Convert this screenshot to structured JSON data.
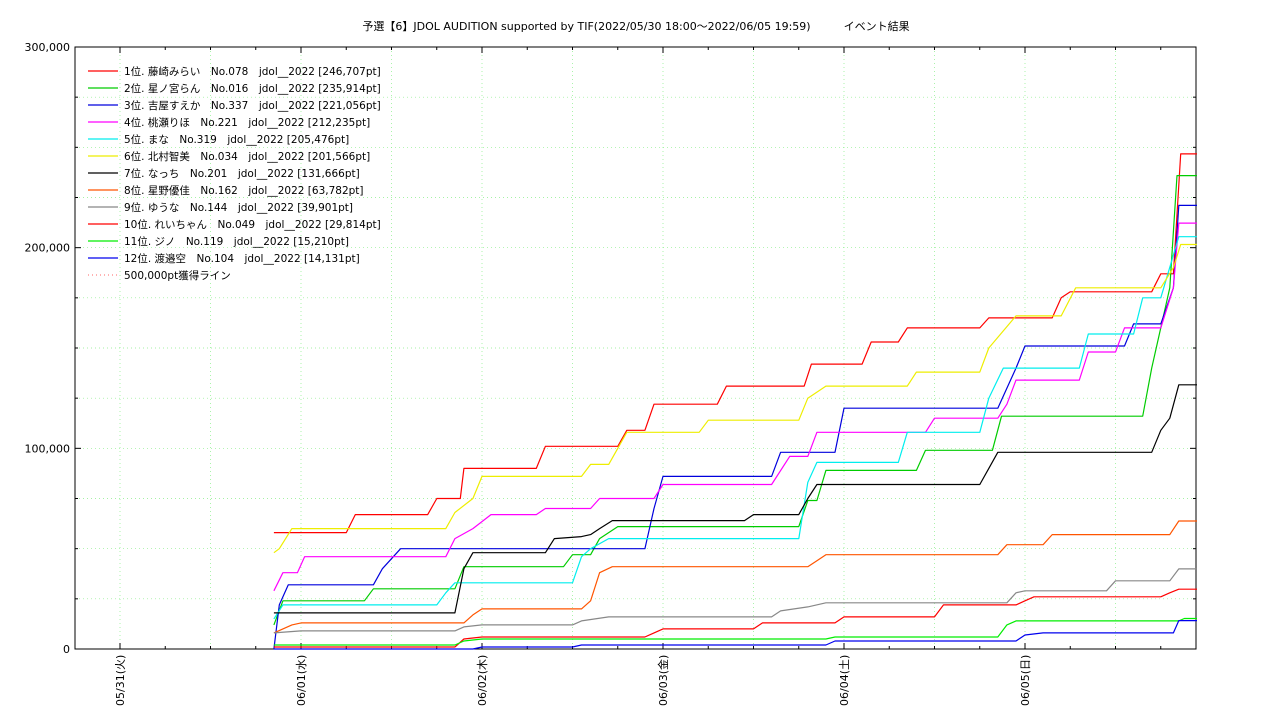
{
  "chart_data": {
    "type": "line",
    "title": "予選【6】JDOL AUDITION supported by TIF(2022/05/30 18:00～2022/06/05 19:59)　　　イベント結果",
    "x_tick_labels": [
      "05/31(火)",
      "06/01(水)",
      "06/02(木)",
      "06/03(金)",
      "06/04(土)",
      "06/05(日)"
    ],
    "x_range_days": [
      -0.5,
      6.0
    ],
    "ylim": [
      0,
      300000
    ],
    "y_ticks": [
      0,
      100000,
      200000,
      300000
    ],
    "y_tick_labels": [
      "0",
      "100,000",
      "200,000",
      "300,000"
    ],
    "grid": true,
    "legend_position": "top-left",
    "reference_line": {
      "name": "500,000pt獲得ライン",
      "value": 500000,
      "color": "#ff6666"
    },
    "series": [
      {
        "name": "1位. 藤崎みらい　No.078　jdol__2022 [246,707pt]",
        "color": "#ff0000",
        "points": [
          [
            0.85,
            58000
          ],
          [
            1.25,
            58000
          ],
          [
            1.3,
            67000
          ],
          [
            1.7,
            67000
          ],
          [
            1.75,
            75000
          ],
          [
            1.88,
            75000
          ],
          [
            1.9,
            90000
          ],
          [
            2.3,
            90000
          ],
          [
            2.35,
            101000
          ],
          [
            2.75,
            101000
          ],
          [
            2.8,
            109000
          ],
          [
            2.9,
            109000
          ],
          [
            2.95,
            122000
          ],
          [
            3.3,
            122000
          ],
          [
            3.35,
            131000
          ],
          [
            3.78,
            131000
          ],
          [
            3.82,
            142000
          ],
          [
            4.1,
            142000
          ],
          [
            4.15,
            153000
          ],
          [
            4.3,
            153000
          ],
          [
            4.35,
            160000
          ],
          [
            4.75,
            160000
          ],
          [
            4.8,
            165000
          ],
          [
            5.15,
            165000
          ],
          [
            5.2,
            175000
          ],
          [
            5.25,
            178000
          ],
          [
            5.7,
            178000
          ],
          [
            5.75,
            187000
          ],
          [
            5.82,
            187000
          ],
          [
            5.86,
            246707
          ],
          [
            5.95,
            246707
          ]
        ]
      },
      {
        "name": "2位. 星ノ宮らん　No.016　jdol__2022 [235,914pt]",
        "color": "#00cc00",
        "points": [
          [
            0.85,
            12000
          ],
          [
            0.9,
            24000
          ],
          [
            1.35,
            24000
          ],
          [
            1.4,
            30000
          ],
          [
            1.85,
            30000
          ],
          [
            1.9,
            41000
          ],
          [
            2.45,
            41000
          ],
          [
            2.5,
            47000
          ],
          [
            2.6,
            47000
          ],
          [
            2.65,
            55000
          ],
          [
            2.75,
            61000
          ],
          [
            3.25,
            61000
          ],
          [
            3.35,
            61000
          ],
          [
            3.45,
            61000
          ],
          [
            3.5,
            61000
          ],
          [
            3.75,
            61000
          ],
          [
            3.8,
            74000
          ],
          [
            3.85,
            74000
          ],
          [
            3.9,
            89000
          ],
          [
            4.4,
            89000
          ],
          [
            4.45,
            99000
          ],
          [
            4.82,
            99000
          ],
          [
            4.87,
            116000
          ],
          [
            5.5,
            116000
          ],
          [
            5.6,
            116000
          ],
          [
            5.65,
            116000
          ],
          [
            5.7,
            140000
          ],
          [
            5.8,
            180000
          ],
          [
            5.84,
            235914
          ],
          [
            5.95,
            235914
          ]
        ]
      },
      {
        "name": "3位. 吉屋すえか　No.337　jdol__2022 [221,056pt]",
        "color": "#0000dd",
        "points": [
          [
            0.85,
            0
          ],
          [
            0.88,
            22000
          ],
          [
            0.93,
            32000
          ],
          [
            1.4,
            32000
          ],
          [
            1.45,
            40000
          ],
          [
            1.55,
            50000
          ],
          [
            2.9,
            50000
          ],
          [
            2.95,
            70000
          ],
          [
            3.0,
            86000
          ],
          [
            3.6,
            86000
          ],
          [
            3.65,
            98000
          ],
          [
            3.95,
            98000
          ],
          [
            4.0,
            120000
          ],
          [
            4.85,
            120000
          ],
          [
            4.95,
            140000
          ],
          [
            5.0,
            151000
          ],
          [
            5.55,
            151000
          ],
          [
            5.6,
            162000
          ],
          [
            5.75,
            162000
          ],
          [
            5.82,
            180000
          ],
          [
            5.85,
            221056
          ],
          [
            5.95,
            221056
          ]
        ]
      },
      {
        "name": "4位. 桃瀬りほ　No.221　jdol__2022 [212,235pt]",
        "color": "#ff00ff",
        "points": [
          [
            0.85,
            29000
          ],
          [
            0.9,
            38000
          ],
          [
            0.98,
            38000
          ],
          [
            1.02,
            46000
          ],
          [
            1.8,
            46000
          ],
          [
            1.85,
            55000
          ],
          [
            1.95,
            60000
          ],
          [
            2.05,
            67000
          ],
          [
            2.3,
            67000
          ],
          [
            2.35,
            70000
          ],
          [
            2.6,
            70000
          ],
          [
            2.65,
            75000
          ],
          [
            2.95,
            75000
          ],
          [
            3.0,
            82000
          ],
          [
            3.6,
            82000
          ],
          [
            3.7,
            96000
          ],
          [
            3.8,
            96000
          ],
          [
            3.85,
            108000
          ],
          [
            4.45,
            108000
          ],
          [
            4.5,
            115000
          ],
          [
            4.85,
            115000
          ],
          [
            4.9,
            122000
          ],
          [
            4.95,
            134000
          ],
          [
            5.3,
            134000
          ],
          [
            5.35,
            148000
          ],
          [
            5.5,
            148000
          ],
          [
            5.55,
            160000
          ],
          [
            5.75,
            160000
          ],
          [
            5.82,
            180000
          ],
          [
            5.85,
            212235
          ],
          [
            5.95,
            212235
          ]
        ]
      },
      {
        "name": "5位. まな　No.319　jdol__2022 [205,476pt]",
        "color": "#00eeee",
        "points": [
          [
            0.85,
            15000
          ],
          [
            0.9,
            22000
          ],
          [
            1.75,
            22000
          ],
          [
            1.8,
            28000
          ],
          [
            1.85,
            33000
          ],
          [
            2.5,
            33000
          ],
          [
            2.55,
            46000
          ],
          [
            2.6,
            50000
          ],
          [
            2.7,
            55000
          ],
          [
            3.75,
            55000
          ],
          [
            3.8,
            83000
          ],
          [
            3.85,
            93000
          ],
          [
            4.3,
            93000
          ],
          [
            4.35,
            108000
          ],
          [
            4.75,
            108000
          ],
          [
            4.8,
            125000
          ],
          [
            4.88,
            140000
          ],
          [
            5.3,
            140000
          ],
          [
            5.35,
            157000
          ],
          [
            5.6,
            157000
          ],
          [
            5.65,
            175000
          ],
          [
            5.75,
            175000
          ],
          [
            5.85,
            205476
          ],
          [
            5.95,
            205476
          ]
        ]
      },
      {
        "name": "6位. 北村智美　No.034　jdol__2022 [201,566pt]",
        "color": "#eeee00",
        "points": [
          [
            0.85,
            48000
          ],
          [
            0.88,
            50000
          ],
          [
            0.95,
            60000
          ],
          [
            1.8,
            60000
          ],
          [
            1.85,
            68000
          ],
          [
            1.95,
            75000
          ],
          [
            2.0,
            86000
          ],
          [
            2.55,
            86000
          ],
          [
            2.6,
            92000
          ],
          [
            2.7,
            92000
          ],
          [
            2.75,
            100000
          ],
          [
            2.8,
            108000
          ],
          [
            3.2,
            108000
          ],
          [
            3.25,
            114000
          ],
          [
            3.75,
            114000
          ],
          [
            3.8,
            125000
          ],
          [
            3.9,
            131000
          ],
          [
            4.35,
            131000
          ],
          [
            4.4,
            138000
          ],
          [
            4.75,
            138000
          ],
          [
            4.8,
            150000
          ],
          [
            4.95,
            166000
          ],
          [
            5.2,
            166000
          ],
          [
            5.28,
            180000
          ],
          [
            5.75,
            180000
          ],
          [
            5.82,
            190000
          ],
          [
            5.86,
            201566
          ],
          [
            5.95,
            201566
          ]
        ]
      },
      {
        "name": "7位. なっち　No.201　jdol__2022 [131,666pt]",
        "color": "#000000",
        "points": [
          [
            0.85,
            18000
          ],
          [
            1.85,
            18000
          ],
          [
            1.9,
            40000
          ],
          [
            1.95,
            48000
          ],
          [
            2.35,
            48000
          ],
          [
            2.4,
            55000
          ],
          [
            2.55,
            56000
          ],
          [
            2.6,
            57000
          ],
          [
            2.65,
            60000
          ],
          [
            2.72,
            64000
          ],
          [
            3.45,
            64000
          ],
          [
            3.5,
            67000
          ],
          [
            3.75,
            67000
          ],
          [
            3.8,
            75000
          ],
          [
            3.85,
            82000
          ],
          [
            4.75,
            82000
          ],
          [
            4.8,
            90000
          ],
          [
            4.85,
            98000
          ],
          [
            5.7,
            98000
          ],
          [
            5.75,
            109000
          ],
          [
            5.8,
            115000
          ],
          [
            5.85,
            131666
          ],
          [
            5.95,
            131666
          ]
        ]
      },
      {
        "name": "8位. 星野優佳　No.162　jdol__2022 [63,782pt]",
        "color": "#ff5500",
        "points": [
          [
            0.85,
            8000
          ],
          [
            0.95,
            12000
          ],
          [
            1.0,
            13000
          ],
          [
            1.9,
            13000
          ],
          [
            1.95,
            17000
          ],
          [
            2.0,
            20000
          ],
          [
            2.55,
            20000
          ],
          [
            2.6,
            24000
          ],
          [
            2.65,
            38000
          ],
          [
            2.72,
            41000
          ],
          [
            3.8,
            41000
          ],
          [
            3.85,
            44000
          ],
          [
            3.9,
            47000
          ],
          [
            4.85,
            47000
          ],
          [
            4.9,
            52000
          ],
          [
            5.1,
            52000
          ],
          [
            5.15,
            57000
          ],
          [
            5.8,
            57000
          ],
          [
            5.85,
            63782
          ],
          [
            5.95,
            63782
          ]
        ]
      },
      {
        "name": "9位. ゆうな　No.144　jdol__2022 [39,901pt]",
        "color": "#888888",
        "points": [
          [
            0.85,
            8000
          ],
          [
            1.0,
            9000
          ],
          [
            1.85,
            9000
          ],
          [
            1.9,
            11000
          ],
          [
            2.0,
            12000
          ],
          [
            2.5,
            12000
          ],
          [
            2.55,
            14000
          ],
          [
            2.7,
            16000
          ],
          [
            3.6,
            16000
          ],
          [
            3.65,
            19000
          ],
          [
            3.8,
            21000
          ],
          [
            3.9,
            23000
          ],
          [
            4.9,
            23000
          ],
          [
            4.95,
            28000
          ],
          [
            5.0,
            29000
          ],
          [
            5.45,
            29000
          ],
          [
            5.5,
            34000
          ],
          [
            5.8,
            34000
          ],
          [
            5.85,
            39901
          ],
          [
            5.95,
            39901
          ]
        ]
      },
      {
        "name": "10位. れいちゃん　No.049　jdol__2022 [29,814pt]",
        "color": "#ff0000",
        "points": [
          [
            0.85,
            1000
          ],
          [
            1.85,
            1000
          ],
          [
            1.9,
            5000
          ],
          [
            2.0,
            6000
          ],
          [
            2.9,
            6000
          ],
          [
            2.95,
            8000
          ],
          [
            3.0,
            10000
          ],
          [
            3.5,
            10000
          ],
          [
            3.55,
            13000
          ],
          [
            3.95,
            13000
          ],
          [
            4.0,
            16000
          ],
          [
            4.5,
            16000
          ],
          [
            4.55,
            22000
          ],
          [
            4.95,
            22000
          ],
          [
            5.0,
            24000
          ],
          [
            5.05,
            26000
          ],
          [
            5.75,
            26000
          ],
          [
            5.8,
            28000
          ],
          [
            5.85,
            29814
          ],
          [
            5.95,
            29814
          ]
        ]
      },
      {
        "name": "11位. ジノ　No.119　jdol__2022 [15,210pt]",
        "color": "#00ee00",
        "points": [
          [
            0.85,
            2000
          ],
          [
            1.85,
            2000
          ],
          [
            1.9,
            4000
          ],
          [
            2.0,
            5000
          ],
          [
            3.9,
            5000
          ],
          [
            3.95,
            6000
          ],
          [
            4.85,
            6000
          ],
          [
            4.9,
            12000
          ],
          [
            4.95,
            14000
          ],
          [
            5.85,
            14000
          ],
          [
            5.88,
            15210
          ],
          [
            5.95,
            15210
          ]
        ]
      },
      {
        "name": "12位. 渡邉空　No.104　jdol__2022 [14,131pt]",
        "color": "#0000ee",
        "points": [
          [
            0.85,
            0
          ],
          [
            1.95,
            0
          ],
          [
            2.0,
            1000
          ],
          [
            2.5,
            1000
          ],
          [
            2.55,
            2000
          ],
          [
            3.9,
            2000
          ],
          [
            3.95,
            4000
          ],
          [
            4.95,
            4000
          ],
          [
            5.0,
            7000
          ],
          [
            5.1,
            8000
          ],
          [
            5.82,
            8000
          ],
          [
            5.85,
            14131
          ],
          [
            5.95,
            14131
          ]
        ]
      }
    ]
  }
}
